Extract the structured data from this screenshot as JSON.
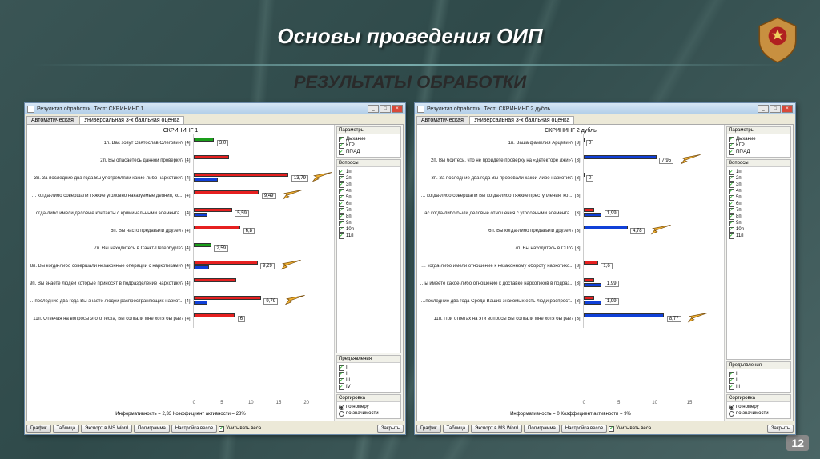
{
  "slide": {
    "title": "Основы проведения ОИП",
    "subtitle": "РЕЗУЛЬТАТЫ ОБРАБОТКИ",
    "page_number": "12"
  },
  "colors": {
    "bar_green": "#1a9e1a",
    "bar_red": "#e62020",
    "bar_blue": "#1040d8",
    "arrow_fill": "#f0b030",
    "arrow_stroke": "#7a5010"
  },
  "tabs": {
    "tab1": "Автоматическая",
    "tab2": "Универсальная 3-х балльная оценка"
  },
  "window_controls": {
    "min": "_",
    "max": "□",
    "close": "×"
  },
  "buttons": {
    "grafik": "График",
    "tablica": "Таблица",
    "export": "Экспорт в MS Word",
    "poligramma": "Полиграмма",
    "nastroika": "Настройка весов",
    "uchit": "Учитывать веса",
    "close": "Закрыть"
  },
  "panels": {
    "parametry": "Параметры",
    "voprosy": "Вопросы",
    "pred": "Предъявления",
    "sort": "Сортировка",
    "sort_num": "по номеру",
    "sort_zn": "по значимости",
    "param_items": [
      "Дыхание",
      "КГР",
      "ПГ/АД"
    ]
  },
  "left": {
    "win_title": "Результат обработки. Тест: СКРИНИНГ 1",
    "chart_title": "СКРИНИНГ 1",
    "xmax": 20,
    "footer": "Информативность = 2,33   Коэффициент активности = 28%",
    "rows": [
      {
        "label": "1п. Вас зовут Святослав Олегович? [4]",
        "bars": [
          {
            "c": "green",
            "v": 3.0
          }
        ],
        "val": "3,0",
        "arrow": false
      },
      {
        "label": "2п. Вы опасаетесь данной проверки? [4]",
        "bars": [
          {
            "c": "red",
            "v": 5.2
          }
        ],
        "val": "",
        "arrow": false
      },
      {
        "label": "3п. За последние два года Вы употребляли какие-либо наркотики? [4]",
        "bars": [
          {
            "c": "red",
            "v": 13.79
          },
          {
            "c": "blue",
            "v": 3.5
          }
        ],
        "val": "13,79",
        "arrow": true
      },
      {
        "label": "4п. Вы когда-либо совершали тяжкие уголовно наказуемые деяния, ко... [4]",
        "bars": [
          {
            "c": "red",
            "v": 9.49
          }
        ],
        "val": "9,49",
        "arrow": true
      },
      {
        "label": "5п. Вы когда-либо имели деловые контакты с криминальными элемента... [4]",
        "bars": [
          {
            "c": "red",
            "v": 5.59
          },
          {
            "c": "blue",
            "v": 2.0
          }
        ],
        "val": "5,59",
        "arrow": false
      },
      {
        "label": "6п. Вы часто предавали друзей? [4]",
        "bars": [
          {
            "c": "red",
            "v": 6.8
          }
        ],
        "val": "6,8",
        "arrow": false
      },
      {
        "label": "7п. Вы находитесь в Санкт-Петербурге? [4]",
        "bars": [
          {
            "c": "green",
            "v": 2.59
          }
        ],
        "val": "2,59",
        "arrow": false
      },
      {
        "label": "8п. Вы когда-либо совершали незаконные операции с наркотиками? [4]",
        "bars": [
          {
            "c": "red",
            "v": 9.29
          },
          {
            "c": "blue",
            "v": 2.2
          }
        ],
        "val": "9,29",
        "arrow": true
      },
      {
        "label": "9п. Вы знаете людей которые приносят в подразделение наркотики? [4]",
        "bars": [
          {
            "c": "red",
            "v": 6.2
          }
        ],
        "val": "",
        "arrow": false
      },
      {
        "label": "10п. За последние два года Вы знаете людей распространяющих наркот... [4]",
        "bars": [
          {
            "c": "red",
            "v": 9.79
          },
          {
            "c": "blue",
            "v": 2.0
          }
        ],
        "val": "9,79",
        "arrow": true
      },
      {
        "label": "11п. Отвечая на вопросы этого теста, Вы солгали мне хотя бы раз? [4]",
        "bars": [
          {
            "c": "red",
            "v": 6.0
          }
        ],
        "val": "6",
        "arrow": false
      }
    ],
    "voprosy": [
      "1п",
      "2п",
      "3п",
      "4п",
      "5п",
      "6п",
      "7п",
      "8п",
      "9п",
      "10п",
      "11п"
    ],
    "pred": [
      "I",
      "II",
      "III",
      "IV"
    ]
  },
  "right": {
    "win_title": "Результат обработки. Тест: СКРИНИНГ 2 дубль",
    "chart_title": "СКРИНИНГ 2 дубль",
    "xmax": 15,
    "footer": "Информативность = 0   Коэффициент активности = 9%",
    "rows": [
      {
        "label": "1п. Ваша фамилия Арцевич? [3]",
        "bars": [
          {
            "c": "blue",
            "v": 0
          }
        ],
        "val": "0",
        "arrow": false
      },
      {
        "label": "2п. Вы боитесь, что не пройдете проверку на «детекторе лжи»? [3]",
        "bars": [
          {
            "c": "blue",
            "v": 7.95
          }
        ],
        "val": "7,95",
        "arrow": true
      },
      {
        "label": "3п. За последние два года Вы пробовали какой-либо наркотик? [3]",
        "bars": [
          {
            "c": "blue",
            "v": 0
          }
        ],
        "val": "0",
        "arrow": false
      },
      {
        "label": "4п. Вы когда-либо совершали Вы когда-либо тяжкие преступления, кот... [3]",
        "bars": [],
        "val": "",
        "arrow": false
      },
      {
        "label": "5п. У Вас когда-либо были деловые отношения с уголовными элемента... [3]",
        "bars": [
          {
            "c": "red",
            "v": 1.2
          },
          {
            "c": "blue",
            "v": 1.99
          }
        ],
        "val": "1,99",
        "arrow": false
      },
      {
        "label": "6п. Вы когда-либо предавали друзей? [3]",
        "bars": [
          {
            "c": "blue",
            "v": 4.78
          }
        ],
        "val": "4,78",
        "arrow": true
      },
      {
        "label": "7п. Вы находитесь в СПб? [3]",
        "bars": [],
        "val": "",
        "arrow": false
      },
      {
        "label": "8п. Вы когда-либо имели отношение к незаконному обороту наркотико... [3]",
        "bars": [
          {
            "c": "red",
            "v": 1.6
          }
        ],
        "val": "1,6",
        "arrow": false
      },
      {
        "label": "9п. Вы имеете какое-либо отношение к доставке наркотиков в подраз... [3]",
        "bars": [
          {
            "c": "red",
            "v": 1.2
          },
          {
            "c": "blue",
            "v": 1.99
          }
        ],
        "val": "1,99",
        "arrow": false
      },
      {
        "label": "10п. За последние два года Среди Ваших знакомых есть люди распрост... [3]",
        "bars": [
          {
            "c": "red",
            "v": 1.2
          },
          {
            "c": "blue",
            "v": 1.99
          }
        ],
        "val": "1,99",
        "arrow": false
      },
      {
        "label": "11п. При ответах на эти вопросы Вы солгали мне хотя бы раз? [3]",
        "bars": [
          {
            "c": "blue",
            "v": 8.77
          }
        ],
        "val": "8,77",
        "arrow": true
      }
    ],
    "voprosy": [
      "1п",
      "2п",
      "3п",
      "4п",
      "5п",
      "6п",
      "7п",
      "8п",
      "9п",
      "10п",
      "11п"
    ],
    "pred": [
      "I",
      "II",
      "III"
    ]
  }
}
